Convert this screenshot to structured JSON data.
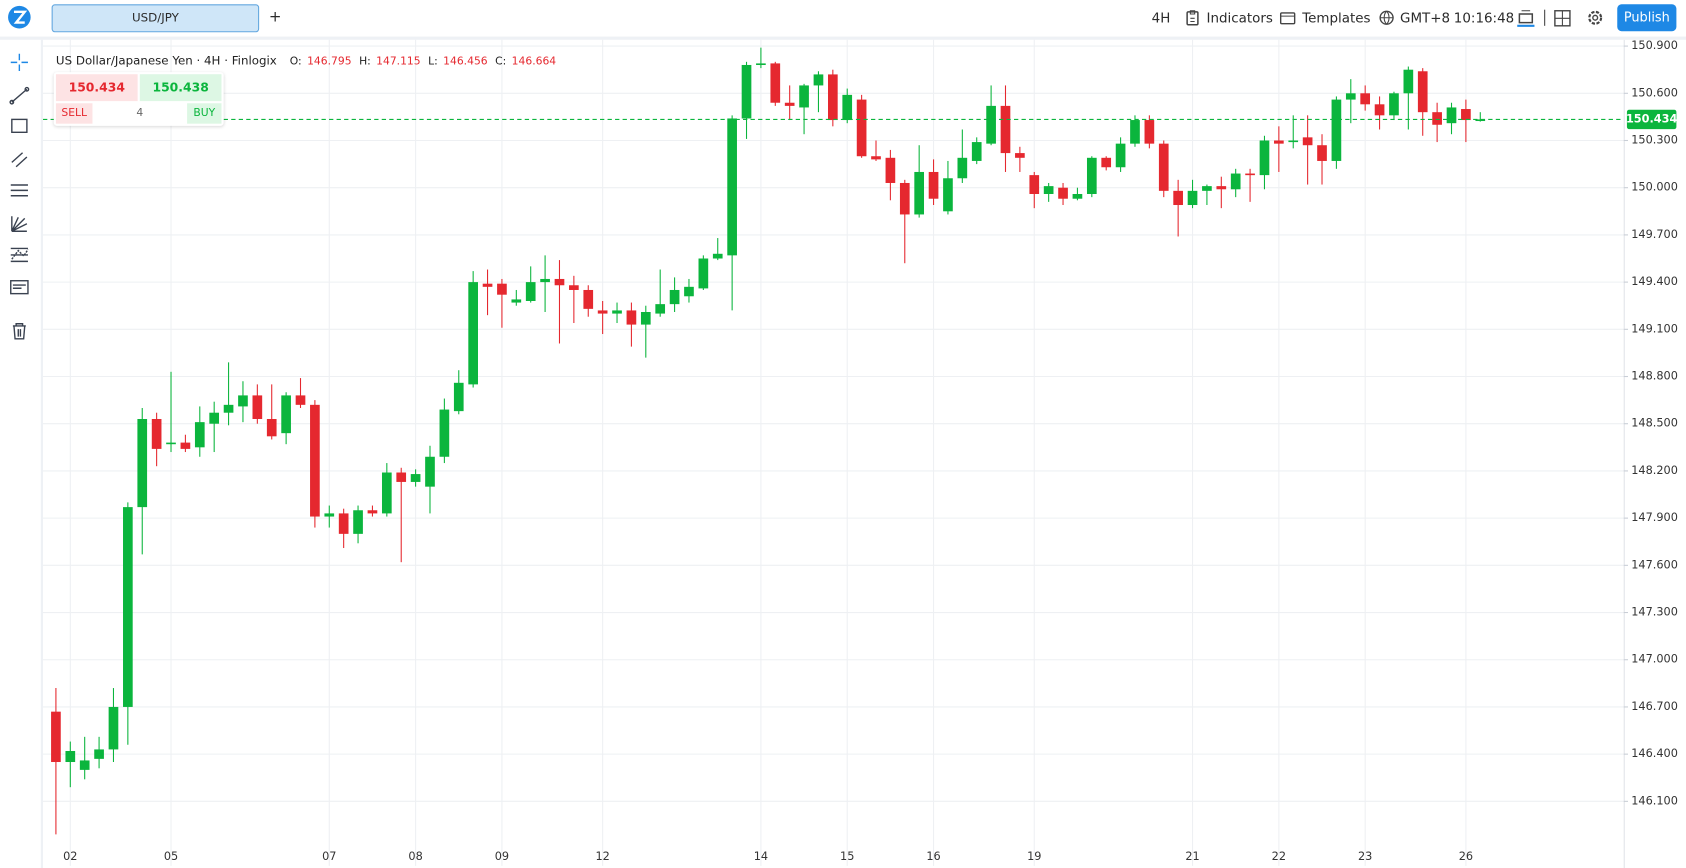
{
  "toolbar": {
    "symbol": "USD/JPY",
    "add": "+",
    "interval": "4H",
    "indicators": "Indicators",
    "templates": "Templates",
    "timezone": "GMT+8",
    "time": "10:16:48",
    "publish": "Publish"
  },
  "trade": {
    "sell_price": 150.434,
    "buy_price": 150.438,
    "sell": "SELL",
    "buy": "BUY",
    "quantity": 4
  },
  "chart_data": {
    "type": "candlestick",
    "title": "US Dollar/Japanese Yen · 4H · Finlogix",
    "ohlc_legend": [
      {
        "label": "O:",
        "value": 146.795
      },
      {
        "label": "H:",
        "value": 147.115
      },
      {
        "label": "L:",
        "value": 146.456
      },
      {
        "label": "C:",
        "value": 146.664
      }
    ],
    "up_color": "#0bb53d",
    "down_color": "#e5282f",
    "grid": true,
    "last_price": 150.434,
    "ylim": [
      145.69,
      150.94
    ],
    "yticks": [
      {
        "value": 150.9,
        "label": "150.900"
      },
      {
        "value": 150.6,
        "label": "150.600"
      },
      {
        "value": 150.3,
        "label": "150.300"
      },
      {
        "value": 150.0,
        "label": "150.000"
      },
      {
        "value": 149.7,
        "label": "149.700"
      },
      {
        "value": 149.4,
        "label": "149.400"
      },
      {
        "value": 149.1,
        "label": "149.100"
      },
      {
        "value": 148.8,
        "label": "148.800"
      },
      {
        "value": 148.5,
        "label": "148.500"
      },
      {
        "value": 148.2,
        "label": "148.200"
      },
      {
        "value": 147.9,
        "label": "147.900"
      },
      {
        "value": 147.6,
        "label": "147.600"
      },
      {
        "value": 147.3,
        "label": "147.300"
      },
      {
        "value": 147.0,
        "label": "147.000"
      },
      {
        "value": 146.7,
        "label": "146.700"
      },
      {
        "value": 146.4,
        "label": "146.400"
      },
      {
        "value": 146.1,
        "label": "146.100"
      }
    ],
    "categories": [
      null,
      "02",
      null,
      null,
      null,
      null,
      null,
      null,
      "05",
      null,
      null,
      null,
      null,
      null,
      null,
      null,
      null,
      null,
      null,
      "07",
      null,
      null,
      null,
      null,
      null,
      "08",
      null,
      null,
      null,
      null,
      null,
      "09",
      null,
      null,
      null,
      null,
      null,
      null,
      "12",
      null,
      null,
      null,
      null,
      null,
      null,
      null,
      null,
      null,
      null,
      "14",
      null,
      null,
      null,
      null,
      null,
      "15",
      null,
      null,
      null,
      null,
      null,
      "16",
      null,
      null,
      null,
      null,
      null,
      null,
      "19",
      null,
      null,
      null,
      null,
      null,
      null,
      null,
      null,
      null,
      null,
      "21",
      null,
      null,
      null,
      null,
      null,
      "22",
      null,
      null,
      null,
      null,
      null,
      "23",
      null,
      null,
      null,
      null,
      null,
      null,
      "26",
      null
    ],
    "open": [
      146.67,
      146.35,
      146.3,
      146.37,
      146.43,
      146.7,
      147.97,
      148.53,
      148.37,
      148.38,
      148.35,
      148.5,
      148.57,
      148.61,
      148.68,
      148.53,
      148.44,
      148.68,
      148.62,
      147.91,
      147.93,
      147.8,
      147.95,
      147.93,
      148.19,
      148.13,
      148.1,
      148.29,
      148.58,
      148.75,
      149.39,
      149.39,
      149.27,
      149.28,
      149.4,
      149.42,
      149.38,
      149.35,
      149.22,
      149.2,
      149.22,
      149.13,
      149.2,
      149.26,
      149.31,
      149.36,
      149.55,
      149.57,
      150.44,
      150.78,
      150.79,
      150.54,
      150.51,
      150.65,
      150.72,
      150.43,
      150.56,
      150.2,
      150.19,
      150.03,
      149.83,
      150.1,
      149.85,
      150.06,
      150.17,
      150.28,
      150.52,
      150.22,
      150.08,
      149.96,
      150.0,
      149.93,
      149.96,
      150.19,
      150.13,
      150.28,
      150.43,
      150.28,
      149.98,
      149.89,
      149.98,
      150.01,
      149.99,
      150.09,
      150.08,
      150.3,
      150.29,
      150.32,
      150.27,
      150.17,
      150.56,
      150.6,
      150.53,
      150.46,
      150.6,
      150.74,
      150.48,
      150.41,
      150.5,
      150.43
    ],
    "high": [
      146.82,
      146.48,
      146.51,
      146.51,
      146.82,
      148.0,
      148.6,
      148.57,
      148.83,
      148.43,
      148.61,
      148.64,
      148.89,
      148.77,
      148.75,
      148.75,
      148.7,
      148.79,
      148.65,
      147.98,
      147.96,
      147.98,
      147.98,
      148.25,
      148.22,
      148.21,
      148.36,
      148.66,
      148.84,
      149.47,
      149.48,
      149.42,
      149.35,
      149.5,
      149.57,
      149.54,
      149.44,
      149.38,
      149.28,
      149.27,
      149.27,
      149.25,
      149.48,
      149.43,
      149.42,
      149.57,
      149.68,
      150.46,
      150.8,
      150.89,
      150.8,
      150.65,
      150.66,
      150.74,
      150.75,
      150.63,
      150.59,
      150.3,
      150.24,
      150.05,
      150.27,
      150.18,
      150.17,
      150.37,
      150.32,
      150.65,
      150.65,
      150.26,
      150.1,
      150.03,
      150.03,
      150.0,
      150.2,
      150.2,
      150.32,
      150.46,
      150.46,
      150.3,
      150.05,
      150.05,
      150.02,
      150.07,
      150.12,
      150.12,
      150.33,
      150.39,
      150.46,
      150.46,
      150.34,
      150.58,
      150.69,
      150.65,
      150.58,
      150.61,
      150.77,
      150.76,
      150.54,
      150.54,
      150.56,
      150.48
    ],
    "low": [
      145.89,
      146.19,
      146.24,
      146.31,
      146.35,
      146.46,
      147.67,
      148.23,
      148.32,
      148.32,
      148.29,
      148.32,
      148.49,
      148.51,
      148.5,
      148.4,
      148.37,
      148.6,
      147.84,
      147.84,
      147.71,
      147.74,
      147.91,
      147.91,
      147.62,
      148.1,
      147.93,
      148.25,
      148.56,
      148.73,
      149.19,
      149.11,
      149.25,
      149.27,
      149.21,
      149.01,
      149.14,
      149.18,
      149.07,
      149.14,
      148.99,
      148.92,
      149.18,
      149.21,
      149.27,
      149.35,
      149.54,
      149.22,
      150.31,
      150.76,
      150.52,
      150.43,
      150.34,
      150.48,
      150.39,
      150.41,
      150.19,
      150.17,
      149.92,
      149.52,
      149.81,
      149.89,
      149.83,
      150.03,
      150.15,
      150.27,
      150.1,
      150.1,
      149.87,
      149.91,
      149.89,
      149.92,
      149.94,
      150.11,
      150.1,
      150.26,
      150.25,
      149.94,
      149.69,
      149.87,
      149.89,
      149.87,
      149.94,
      149.91,
      149.99,
      150.1,
      150.25,
      150.02,
      150.02,
      150.12,
      150.41,
      150.49,
      150.37,
      150.43,
      150.37,
      150.33,
      150.29,
      150.34,
      150.29,
      150.42
    ],
    "close": [
      146.35,
      146.42,
      146.36,
      146.43,
      146.7,
      147.97,
      148.53,
      148.34,
      148.38,
      148.34,
      148.51,
      148.57,
      148.62,
      148.68,
      148.53,
      148.42,
      148.68,
      148.62,
      147.91,
      147.93,
      147.8,
      147.95,
      147.93,
      148.19,
      148.13,
      148.18,
      148.29,
      148.59,
      148.76,
      149.4,
      149.37,
      149.32,
      149.29,
      149.4,
      149.42,
      149.38,
      149.35,
      149.23,
      149.2,
      149.22,
      149.13,
      149.21,
      149.26,
      149.35,
      149.37,
      149.55,
      149.58,
      150.44,
      150.78,
      150.79,
      150.54,
      150.52,
      150.65,
      150.72,
      150.43,
      150.59,
      150.2,
      150.18,
      150.03,
      149.83,
      150.1,
      149.93,
      150.06,
      150.19,
      150.29,
      150.52,
      150.22,
      150.19,
      149.96,
      150.01,
      149.93,
      149.96,
      150.19,
      150.13,
      150.28,
      150.43,
      150.28,
      149.98,
      149.89,
      149.98,
      150.01,
      149.99,
      150.09,
      150.08,
      150.3,
      150.28,
      150.3,
      150.27,
      150.17,
      150.56,
      150.6,
      150.53,
      150.46,
      150.6,
      150.75,
      150.48,
      150.4,
      150.51,
      150.43,
      150.434
    ]
  }
}
